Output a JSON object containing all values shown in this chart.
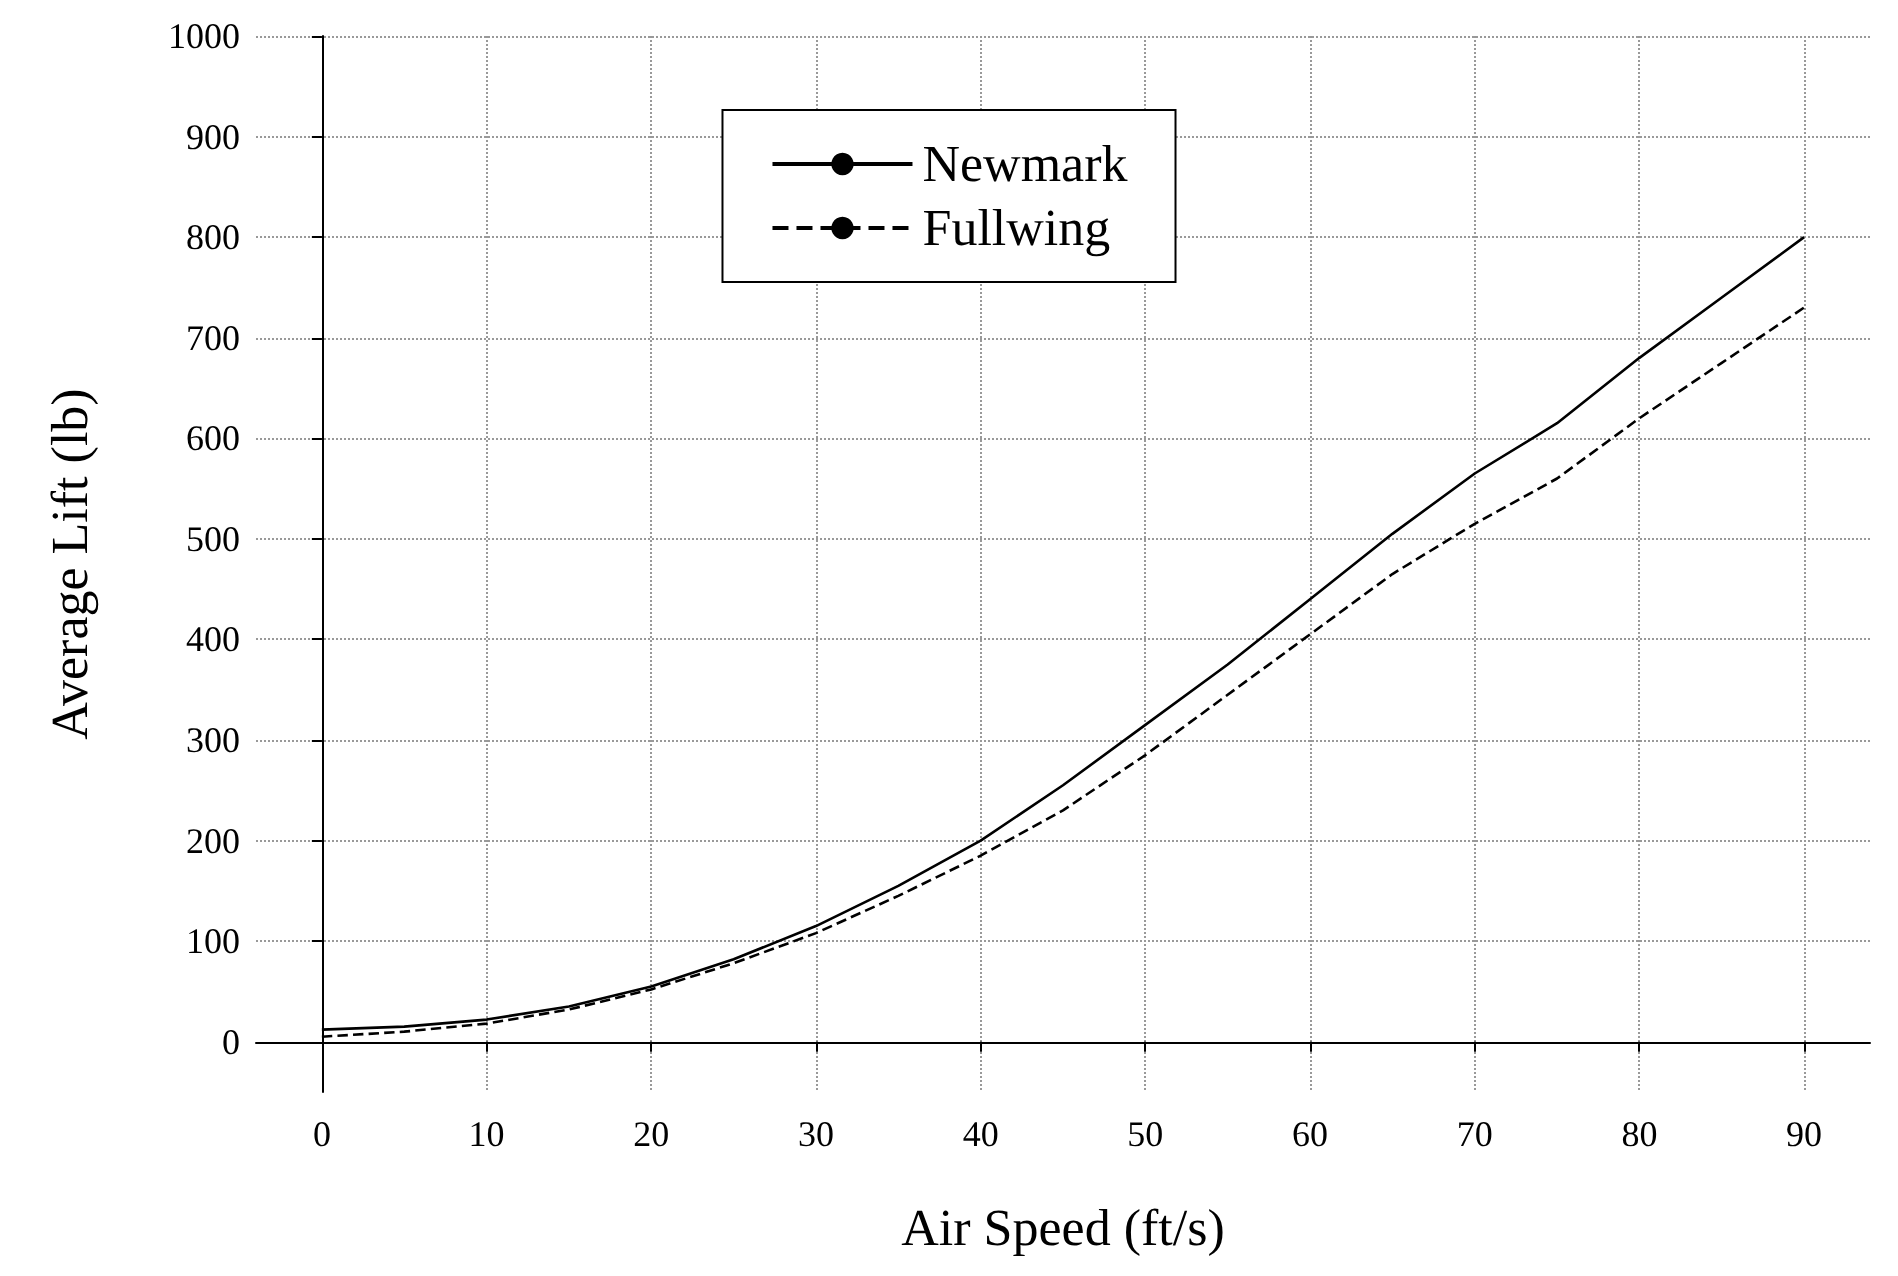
{
  "chart_data": {
    "type": "line",
    "xlabel": "Air Speed (ft/s)",
    "ylabel": "Average Lift (lb)",
    "x": [
      0,
      5,
      10,
      15,
      20,
      25,
      30,
      35,
      40,
      45,
      50,
      55,
      60,
      65,
      70,
      75,
      80,
      85,
      90
    ],
    "series": [
      {
        "name": "Newmark",
        "color": "#000000",
        "line_style": "solid",
        "values": [
          12,
          15,
          22,
          35,
          55,
          82,
          115,
          155,
          200,
          255,
          315,
          375,
          440,
          505,
          565,
          615,
          680,
          740,
          800
        ]
      },
      {
        "name": "Fullwing",
        "color": "#000000",
        "line_style": "dashed",
        "values": [
          5,
          10,
          18,
          32,
          52,
          78,
          108,
          145,
          185,
          230,
          285,
          345,
          405,
          465,
          515,
          560,
          620,
          675,
          730
        ]
      }
    ],
    "xlim": [
      -4,
      94
    ],
    "xticks": [
      0,
      10,
      20,
      30,
      40,
      50,
      60,
      70,
      80,
      90
    ],
    "ylim": [
      -50,
      1000
    ],
    "yticks": [
      0,
      100,
      200,
      300,
      400,
      500,
      600,
      700,
      800,
      900,
      1000
    ],
    "grid": true,
    "legend": "top",
    "marker": "none"
  }
}
